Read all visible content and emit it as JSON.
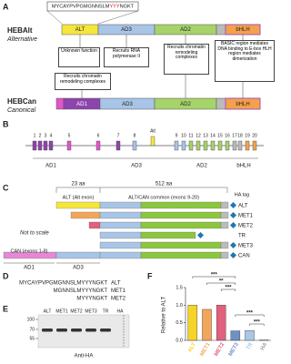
{
  "panels": {
    "a": {
      "letter": "A",
      "alt_name": "HEBAlt",
      "alt_subtitle": "Alternative",
      "sequence_parts": [
        "MYCAYPVPGMGNNSLM",
        "YYY",
        "NGKT"
      ],
      "alt_domains": [
        "ALT",
        "AD3",
        "AD2",
        "bHLH"
      ],
      "alt_notes": [
        "Unknown function",
        "Recruits RNA polymerase II",
        "Recruits chromatin remodeling complexes",
        "BASIC region mediates DNA binding to E-box HLH region mediates dimerization"
      ],
      "can_note": "Recruits chromatin remodeling complexes",
      "can_name": "HEBCan",
      "can_subtitle": "Canonical",
      "can_domains": [
        "AD1",
        "AD3",
        "AD2",
        "bHLH"
      ]
    },
    "b": {
      "letter": "B",
      "exons": [
        "1",
        "2",
        "3",
        "4",
        "5",
        "6",
        "7",
        "8",
        "Alt",
        "9",
        "10",
        "11",
        "12",
        "13",
        "14",
        "15",
        "16",
        "17",
        "18",
        "19",
        "20"
      ],
      "domains": [
        "AD1",
        "AD3",
        "AD2",
        "bHLH"
      ]
    },
    "c": {
      "letter": "C",
      "alt_length": "23 aa",
      "common_length": "512 aa",
      "alt_header": "ALT (Alt exon)",
      "common_header": "ALT/CAN common (exons 9-20)",
      "tag": "HA tag",
      "isoforms": [
        "ALT",
        "MET1",
        "MET2",
        "TR",
        "MET3",
        "CAN"
      ],
      "note": "Not to scale",
      "can_header": "CAN (exons 1-8)",
      "domains": [
        "AD1",
        "AD3"
      ]
    },
    "d": {
      "letter": "D",
      "rows": [
        {
          "sequence": "MYCAYPVPGMGNNSLMYYYNGKT",
          "label": "ALT"
        },
        {
          "sequence": "MGNNSLMYYYNGKT",
          "label": "MET1"
        },
        {
          "sequence": "MYYYNGKT",
          "label": "MET2"
        }
      ]
    },
    "e": {
      "letter": "E",
      "lanes": [
        "ALT",
        "MET1",
        "MET2",
        "MET3",
        "TR",
        "HA"
      ],
      "markers": [
        "100",
        "70",
        "55"
      ],
      "antibody": "Anti-HA"
    }
  },
  "chart_data": {
    "type": "bar",
    "letter": "F",
    "ylabel": "Relative to ALT",
    "categories": [
      "ALT",
      "MET1",
      "MET2",
      "MET3",
      "TR",
      "HA"
    ],
    "values": [
      1.0,
      0.88,
      1.0,
      0.27,
      0.28,
      0.01
    ],
    "colors": [
      "#f5d327",
      "#f2a65a",
      "#e0607e",
      "#6f8fc7",
      "#a9c8e8",
      "#9e9e9e"
    ],
    "ylim": [
      0,
      1.5
    ],
    "yticks": [
      {
        "value": 0,
        "label": "0.0"
      },
      {
        "value": 0.5,
        "label": "0.5"
      },
      {
        "value": 1,
        "label": "1.0"
      },
      {
        "value": 1.5,
        "label": "1.5"
      }
    ],
    "annotations": [
      "***",
      "**",
      "***",
      "***",
      "***"
    ]
  }
}
